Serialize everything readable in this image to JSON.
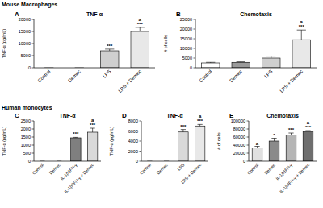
{
  "chart_data": [
    {
      "type": "bar",
      "label": "A",
      "group_title": "Mouse Macrophages",
      "title": "TNF-α",
      "y_label": "TNF-α (pg/mL)",
      "categories": [
        "Control",
        "Demec",
        "LPS",
        "LPS + Demec"
      ],
      "values": [
        0,
        0,
        7000,
        15000
      ],
      "errors": [
        0,
        0,
        700,
        1700
      ],
      "colors": [
        "#ffffff",
        "#9a9a9a",
        "#cfcfcf",
        "#e8e8e8"
      ],
      "ylim": [
        0,
        20000
      ],
      "yticks": [
        0,
        5000,
        10000,
        15000,
        20000
      ],
      "annotations": [
        {
          "category": "LPS",
          "text": "***"
        },
        {
          "category": "LPS + Demec",
          "text": "***"
        },
        {
          "category": "LPS + Demec",
          "text": "a"
        }
      ]
    },
    {
      "type": "bar",
      "label": "B",
      "title": "Chemotaxis",
      "y_label": "# of cells",
      "categories": [
        "Control",
        "Demec",
        "LPS",
        "LPS + Demec"
      ],
      "values": [
        2500,
        2800,
        5000,
        14500
      ],
      "errors": [
        300,
        300,
        1000,
        5000
      ],
      "colors": [
        "#ffffff",
        "#9a9a9a",
        "#cfcfcf",
        "#e8e8e8"
      ],
      "ylim": [
        0,
        25000
      ],
      "yticks": [
        0,
        5000,
        10000,
        15000,
        20000,
        25000
      ],
      "annotations": [
        {
          "category": "LPS + Demec",
          "text": "***"
        },
        {
          "category": "LPS + Demec",
          "text": "a"
        }
      ]
    },
    {
      "type": "bar",
      "label": "C",
      "group_title": "Human monocytes",
      "title": "TNF-α",
      "y_label": "TNF-α (pg/mL)",
      "categories": [
        "Control",
        "Demec",
        "IL-1β/IFN-γ",
        "IL-1β/IFN-γ + Demec"
      ],
      "values": [
        0,
        0,
        1450,
        1800
      ],
      "errors": [
        0,
        0,
        30,
        250
      ],
      "colors": [
        "#ffffff",
        "#9a9a9a",
        "#7f7f7f",
        "#d9d9d9"
      ],
      "ylim": [
        0,
        2500
      ],
      "yticks": [
        0,
        500,
        1000,
        1500,
        2000,
        2500
      ],
      "annotations": [
        {
          "category": "IL-1β/IFN-γ",
          "text": "***"
        },
        {
          "category": "IL-1β/IFN-γ + Demec",
          "text": "***"
        },
        {
          "category": "IL-1β/IFN-γ + Demec",
          "text": "a"
        }
      ]
    },
    {
      "type": "bar",
      "label": "D",
      "title": "TNF-α",
      "y_label": "TNF-α (pg/mL)",
      "categories": [
        "Control",
        "Demec",
        "LPS",
        "LPS + Demec"
      ],
      "values": [
        0,
        0,
        5800,
        7000
      ],
      "errors": [
        0,
        0,
        500,
        300
      ],
      "colors": [
        "#ffffff",
        "#9a9a9a",
        "#d9d9d9",
        "#e8e8e8"
      ],
      "ylim": [
        0,
        8000
      ],
      "yticks": [
        0,
        2000,
        4000,
        6000,
        8000
      ],
      "annotations": [
        {
          "category": "LPS",
          "text": "***"
        },
        {
          "category": "LPS + Demec",
          "text": "***"
        },
        {
          "category": "LPS + Demec",
          "text": "a"
        }
      ]
    },
    {
      "type": "bar",
      "label": "E",
      "title": "Chemotaxis",
      "y_label": "# of cells",
      "categories": [
        "Control",
        "Demec",
        "IL-1β/IFN-γ",
        "IL-1β/IFN-γ + Demec"
      ],
      "values": [
        33000,
        50000,
        65000,
        74000
      ],
      "errors": [
        4000,
        7000,
        5000,
        2000
      ],
      "colors": [
        "#e0e0e0",
        "#8a8a8a",
        "#b5b5b5",
        "#6e6e6e"
      ],
      "ylim": [
        0,
        100000
      ],
      "yticks": [
        0,
        20000,
        40000,
        60000,
        80000,
        100000
      ],
      "annotations": [
        {
          "category": "Control",
          "text": "a"
        },
        {
          "category": "Demec",
          "text": "*"
        },
        {
          "category": "IL-1β/IFN-γ",
          "text": "***"
        },
        {
          "category": "IL-1β/IFN-γ + Demec",
          "text": "***"
        },
        {
          "category": "IL-1β/IFN-γ + Demec",
          "text": "a"
        }
      ]
    }
  ]
}
